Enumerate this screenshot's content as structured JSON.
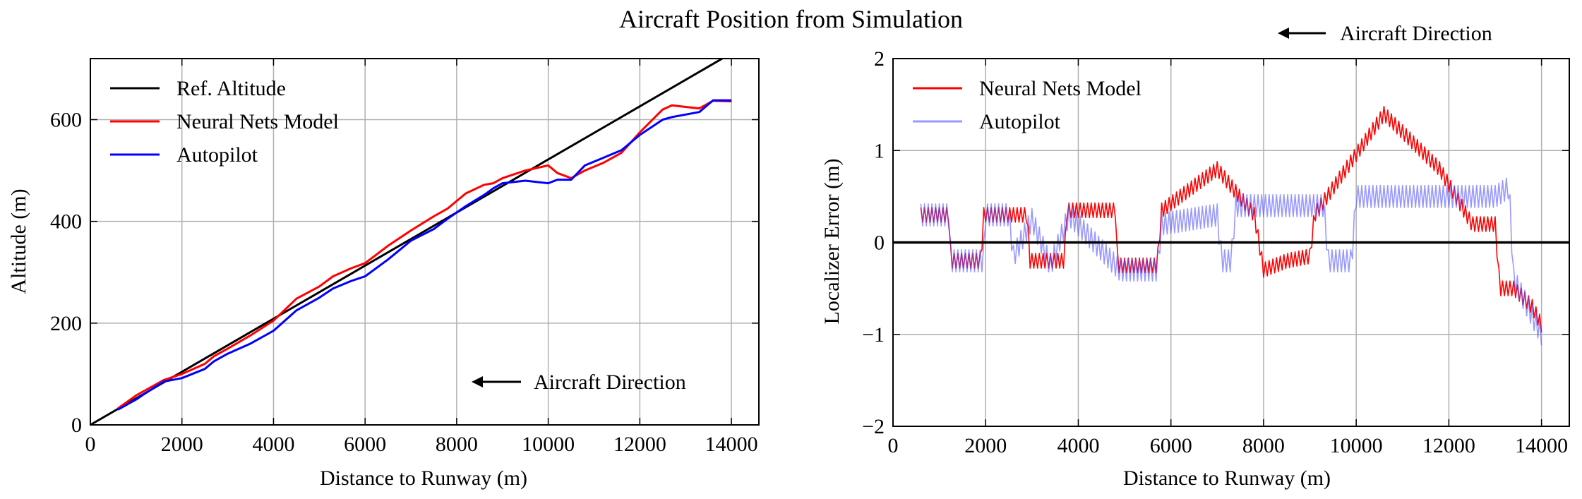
{
  "figure": {
    "title": "Aircraft Position from Simulation"
  },
  "chart_data": [
    {
      "type": "line",
      "xlabel": "Distance to Runway (m)",
      "ylabel": "Altitude (m)",
      "xlim": [
        0,
        14600
      ],
      "ylim": [
        0,
        720
      ],
      "xticks": [
        0,
        2000,
        4000,
        6000,
        8000,
        10000,
        12000,
        14000
      ],
      "yticks": [
        0,
        200,
        400,
        600
      ],
      "grid": true,
      "legend": "upper-left",
      "annotation": "Aircraft Direction",
      "series": [
        {
          "name": "Ref. Altitude",
          "color": "#000000",
          "x": [
            0,
            13800
          ],
          "y": [
            0,
            720
          ]
        },
        {
          "name": "Neural Nets Model",
          "color": "#ff0000",
          "x": [
            600,
            1000,
            1200,
            1600,
            2000,
            2500,
            2700,
            3000,
            3500,
            4000,
            4500,
            5000,
            5300,
            5700,
            6000,
            6500,
            7000,
            7500,
            7800,
            8200,
            8600,
            8800,
            9000,
            9500,
            10000,
            10200,
            10500,
            10800,
            11200,
            11600,
            12000,
            12500,
            12700,
            13000,
            13300,
            13600,
            14000
          ],
          "y": [
            32,
            58,
            68,
            88,
            100,
            120,
            135,
            150,
            176,
            205,
            248,
            272,
            292,
            308,
            318,
            352,
            382,
            410,
            425,
            455,
            472,
            475,
            485,
            500,
            510,
            495,
            485,
            500,
            515,
            535,
            575,
            620,
            628,
            625,
            622,
            637,
            636
          ]
        },
        {
          "name": "Autopilot",
          "color": "#0000ff",
          "x": [
            600,
            1000,
            1200,
            1600,
            2000,
            2500,
            2700,
            3000,
            3500,
            4000,
            4500,
            5000,
            5300,
            5700,
            6000,
            6500,
            7000,
            7500,
            7800,
            8200,
            8600,
            8800,
            9000,
            9500,
            10000,
            10200,
            10500,
            10800,
            11200,
            11600,
            12000,
            12500,
            12700,
            13000,
            13300,
            13600,
            14000
          ],
          "y": [
            30,
            50,
            62,
            85,
            92,
            110,
            125,
            140,
            160,
            185,
            225,
            250,
            268,
            283,
            292,
            325,
            362,
            385,
            405,
            430,
            452,
            465,
            475,
            480,
            475,
            482,
            482,
            510,
            525,
            540,
            570,
            600,
            605,
            610,
            615,
            638,
            638
          ]
        }
      ]
    },
    {
      "type": "line",
      "xlabel": "Distance to Runway (m)",
      "ylabel": "Localizer Error (m)",
      "xlim": [
        0,
        14600
      ],
      "ylim": [
        -2,
        2
      ],
      "xticks": [
        0,
        2000,
        4000,
        6000,
        8000,
        10000,
        12000,
        14000
      ],
      "yticks": [
        -2,
        -1,
        0,
        1,
        2
      ],
      "grid": true,
      "legend": "upper-left",
      "annotation": "Aircraft Direction",
      "reference_line_y": 0,
      "series": [
        {
          "name": "Neural Nets Model",
          "color": "#ff0000",
          "x": [
            600,
            1200,
            1250,
            1900,
            1950,
            2900,
            2950,
            3700,
            3750,
            4800,
            4850,
            5700,
            5800,
            7000,
            7800,
            8000,
            8500,
            9000,
            9100,
            10600,
            11800,
            12500,
            13000,
            13100,
            13400,
            13800,
            14000
          ],
          "y": [
            0.3,
            0.3,
            -0.2,
            -0.2,
            0.3,
            0.3,
            -0.2,
            -0.2,
            0.35,
            0.35,
            -0.25,
            -0.25,
            0.35,
            0.8,
            0.3,
            -0.3,
            -0.2,
            -0.15,
            0.3,
            1.4,
            0.8,
            0.2,
            0.2,
            -0.5,
            -0.5,
            -0.7,
            -0.9
          ]
        },
        {
          "name": "Autopilot",
          "color": "#5555ff",
          "x": [
            600,
            1200,
            1250,
            1950,
            2000,
            2500,
            2600,
            3000,
            3400,
            3800,
            4900,
            5700,
            5800,
            7000,
            7100,
            7300,
            7400,
            9300,
            9400,
            9900,
            10000,
            13000,
            13300,
            13400,
            14000
          ],
          "y": [
            0.3,
            0.3,
            -0.2,
            -0.2,
            0.3,
            0.3,
            -0.15,
            0.25,
            -0.25,
            0.3,
            -0.3,
            -0.3,
            0.2,
            0.3,
            -0.2,
            -0.2,
            0.4,
            0.4,
            -0.2,
            -0.2,
            0.5,
            0.5,
            0.6,
            -0.4,
            -1.0
          ]
        }
      ]
    }
  ]
}
